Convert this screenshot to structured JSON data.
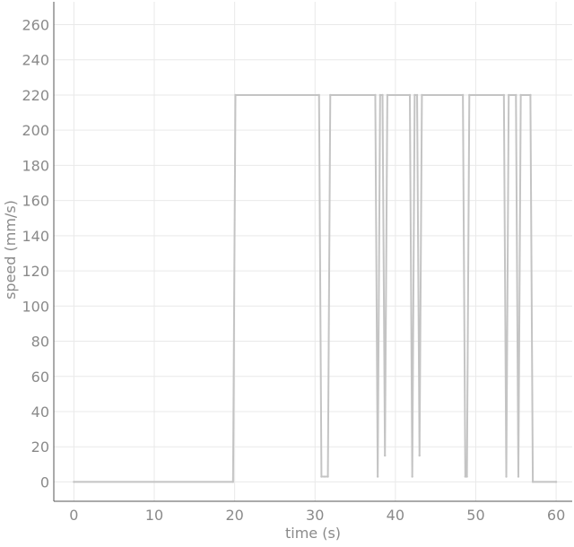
{
  "chart_data": {
    "type": "line",
    "title": "",
    "xlabel": "time (s)",
    "ylabel": "speed (mm/s)",
    "xlim": [
      -2.5,
      62
    ],
    "ylim": [
      -11,
      273
    ],
    "xticks": [
      0,
      10,
      20,
      30,
      40,
      50,
      60
    ],
    "yticks": [
      0,
      20,
      40,
      60,
      80,
      100,
      120,
      140,
      160,
      180,
      200,
      220,
      240,
      260
    ],
    "grid": true,
    "legend": "none",
    "colors": {
      "series": "#c4c4c4",
      "grid": "#e9e9e9",
      "axis": "#555555",
      "text": "#8a8a8a"
    },
    "series": [
      {
        "x": [
          0,
          19.8,
          20.1,
          30.5,
          30.8,
          31.2,
          31.6,
          31.9,
          37.5,
          37.8,
          38.1,
          38.4,
          38.7,
          39.0,
          41.8,
          42.1,
          42.4,
          42.7,
          43.0,
          43.3,
          48.4,
          48.7,
          48.9,
          49.2,
          53.5,
          53.8,
          54.1,
          55.0,
          55.3,
          55.6,
          56.8,
          57.1,
          60
        ],
        "y": [
          0,
          0,
          220,
          220,
          3,
          3,
          3,
          220,
          220,
          3,
          220,
          220,
          15,
          220,
          220,
          3,
          220,
          220,
          15,
          220,
          220,
          3,
          3,
          220,
          220,
          3,
          220,
          220,
          3,
          220,
          220,
          0,
          0
        ]
      }
    ]
  }
}
